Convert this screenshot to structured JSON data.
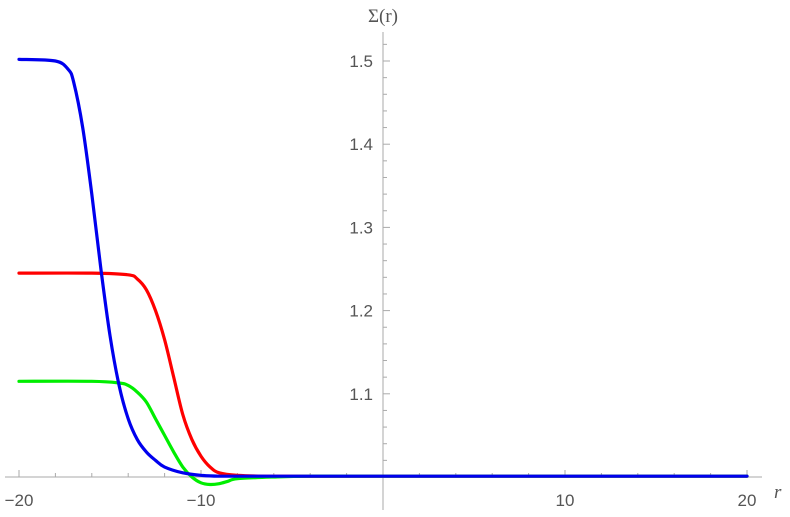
{
  "chart_data": {
    "type": "line",
    "title": "",
    "xlabel": "r",
    "ylabel": "Σ(r)",
    "xlim": [
      -20,
      20
    ],
    "ylim": [
      1.0,
      1.53
    ],
    "origin": [
      0,
      1.0
    ],
    "x_ticks": [
      -20,
      -10,
      10,
      20
    ],
    "x_tick_labels": [
      "−20",
      "−10",
      "10",
      "20"
    ],
    "y_ticks": [
      1.1,
      1.2,
      1.3,
      1.4,
      1.5
    ],
    "y_tick_labels": [
      "1.1",
      "1.2",
      "1.3",
      "1.4",
      "1.5"
    ],
    "grid": false,
    "legend": "none",
    "series": [
      {
        "color": "#ff0000",
        "x": [
          -20,
          -16,
          -14,
          -13.5,
          -13,
          -12.5,
          -12,
          -11.5,
          -11,
          -10.5,
          -10,
          -9.5,
          -9,
          -8,
          -6,
          0,
          20
        ],
        "y": [
          1.245,
          1.245,
          1.243,
          1.238,
          1.225,
          1.2,
          1.165,
          1.12,
          1.075,
          1.045,
          1.025,
          1.012,
          1.005,
          1.002,
          1.001,
          1.001,
          1.001
        ]
      },
      {
        "color": "#00ee00",
        "x": [
          -20,
          -16,
          -14.5,
          -14,
          -13.5,
          -13,
          -12.5,
          -12,
          -11.5,
          -11,
          -10.5,
          -10,
          -9.5,
          -9,
          -8.5,
          -8,
          -6,
          -4,
          0,
          20
        ],
        "y": [
          1.115,
          1.115,
          1.113,
          1.11,
          1.102,
          1.09,
          1.07,
          1.05,
          1.03,
          1.012,
          1.0,
          0.993,
          0.991,
          0.992,
          0.995,
          0.998,
          1.0,
          1.001,
          1.001,
          1.001
        ]
      },
      {
        "color": "#0000ee",
        "x": [
          -20,
          -18,
          -17.3,
          -17,
          -16.5,
          -16,
          -15.5,
          -15,
          -14.5,
          -14,
          -13.5,
          -13,
          -12.5,
          -12,
          -11,
          -10,
          -9,
          -6,
          0,
          20
        ],
        "y": [
          1.502,
          1.5,
          1.49,
          1.475,
          1.42,
          1.34,
          1.25,
          1.17,
          1.11,
          1.07,
          1.045,
          1.03,
          1.02,
          1.012,
          1.005,
          1.002,
          1.001,
          1.001,
          1.001,
          1.001
        ]
      }
    ]
  }
}
